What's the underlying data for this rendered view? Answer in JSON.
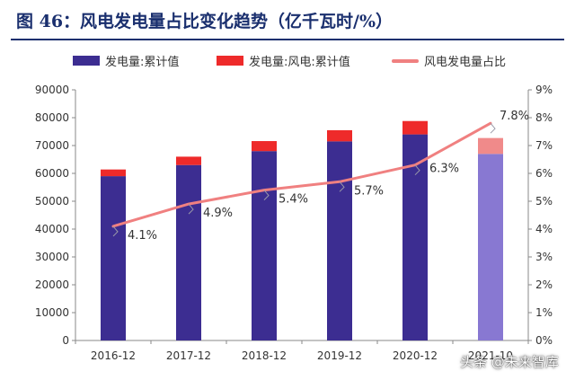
{
  "title": "图 46：风电发电量占比变化趋势（亿千瓦时/%）",
  "watermark": "头条 @未来智库",
  "colors": {
    "bar_main": "#3c2d91",
    "bar_wind": "#ee2a2a",
    "bar_main_proj": "#8878d2",
    "bar_wind_proj": "#f08a8a",
    "line": "#f08080",
    "axis": "#888888",
    "text": "#333333"
  },
  "chart_data": {
    "type": "bar",
    "categories": [
      "2016-12",
      "2017-12",
      "2018-12",
      "2019-12",
      "2020-12",
      "2021-10"
    ],
    "series": [
      {
        "name": "发电量:累计值",
        "type": "bar-stacked",
        "values": [
          59000,
          63000,
          68000,
          71500,
          74000,
          67000
        ]
      },
      {
        "name": "发电量:风电:累计值",
        "type": "bar-stacked",
        "values": [
          2400,
          3000,
          3600,
          4000,
          4800,
          5700
        ]
      },
      {
        "name": "风电发电量占比",
        "type": "line",
        "axis": "right",
        "values": [
          4.1,
          4.9,
          5.4,
          5.7,
          6.3,
          7.8
        ],
        "labels": [
          "4.1%",
          "4.9%",
          "5.4%",
          "5.7%",
          "6.3%",
          "7.8%"
        ]
      }
    ],
    "ylim": [
      0,
      90000
    ],
    "yticks": [
      "0",
      "10000",
      "20000",
      "30000",
      "40000",
      "50000",
      "60000",
      "70000",
      "80000",
      "90000"
    ],
    "y2lim": [
      0,
      9
    ],
    "y2ticks": [
      "0%",
      "1%",
      "2%",
      "3%",
      "4%",
      "5%",
      "6%",
      "7%",
      "8%",
      "9%"
    ],
    "legend_position": "top",
    "grid": false
  }
}
